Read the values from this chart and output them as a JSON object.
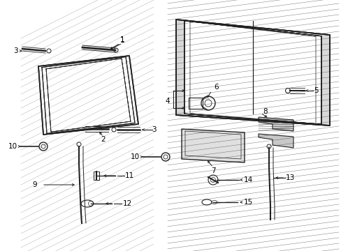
{
  "bg_color": "#ffffff",
  "line_color": "#222222",
  "text_color": "#000000",
  "fig_width": 4.89,
  "fig_height": 3.6,
  "dpi": 100,
  "font_size": 7.5
}
